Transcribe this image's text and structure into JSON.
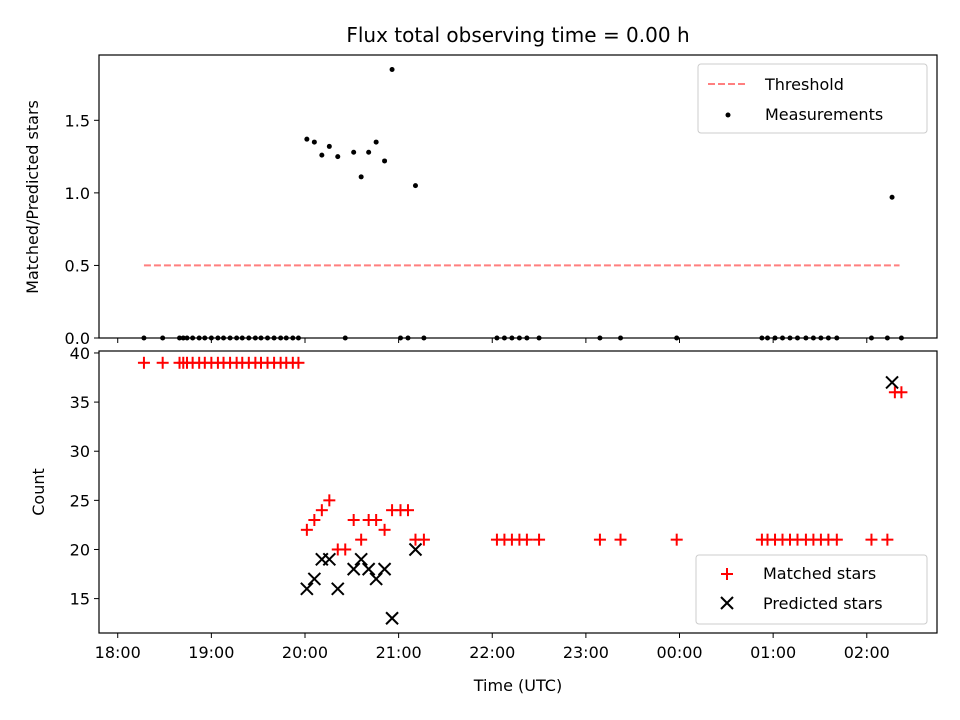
{
  "chart_data": [
    {
      "type": "scatter",
      "title": "Flux total observing time = 0.00 h",
      "xlabel": "",
      "ylabel": "Matched/Predicted stars",
      "xlim": [
        -0.2,
        8.75
      ],
      "ylim": [
        0.0,
        1.95
      ],
      "xticks": [
        0,
        1,
        2,
        3,
        4,
        5,
        6,
        7,
        8
      ],
      "yticks": [
        0.0,
        0.5,
        1.0,
        1.5
      ],
      "ytick_labels": [
        "0.0",
        "0.5",
        "1.0",
        "1.5"
      ],
      "grid": false,
      "legend_position": "top-right",
      "threshold": {
        "name": "Threshold",
        "value": 0.5,
        "x_range": [
          0.28,
          8.35
        ],
        "color": "#ff7f7f",
        "style": "dashed"
      },
      "series": [
        {
          "name": "Measurements",
          "color": "#000000",
          "points": [
            [
              0.28,
              0.0
            ],
            [
              0.48,
              0.0
            ],
            [
              0.66,
              0.0
            ],
            [
              0.7,
              0.0
            ],
            [
              0.74,
              0.0
            ],
            [
              0.8,
              0.0
            ],
            [
              0.87,
              0.0
            ],
            [
              0.93,
              0.0
            ],
            [
              1.0,
              0.0
            ],
            [
              1.07,
              0.0
            ],
            [
              1.13,
              0.0
            ],
            [
              1.2,
              0.0
            ],
            [
              1.27,
              0.0
            ],
            [
              1.33,
              0.0
            ],
            [
              1.4,
              0.0
            ],
            [
              1.47,
              0.0
            ],
            [
              1.53,
              0.0
            ],
            [
              1.6,
              0.0
            ],
            [
              1.67,
              0.0
            ],
            [
              1.74,
              0.0
            ],
            [
              1.8,
              0.0
            ],
            [
              1.87,
              0.0
            ],
            [
              1.93,
              0.0
            ],
            [
              2.02,
              1.37
            ],
            [
              2.1,
              1.35
            ],
            [
              2.18,
              1.26
            ],
            [
              2.26,
              1.32
            ],
            [
              2.35,
              1.25
            ],
            [
              2.43,
              0.0
            ],
            [
              2.52,
              1.28
            ],
            [
              2.6,
              1.11
            ],
            [
              2.68,
              1.28
            ],
            [
              2.76,
              1.35
            ],
            [
              2.85,
              1.22
            ],
            [
              2.93,
              1.85
            ],
            [
              3.02,
              0.0
            ],
            [
              3.1,
              0.0
            ],
            [
              3.18,
              1.05
            ],
            [
              3.27,
              0.0
            ],
            [
              4.05,
              0.0
            ],
            [
              4.13,
              0.0
            ],
            [
              4.21,
              0.0
            ],
            [
              4.29,
              0.0
            ],
            [
              4.37,
              0.0
            ],
            [
              4.5,
              0.0
            ],
            [
              5.15,
              0.0
            ],
            [
              5.37,
              0.0
            ],
            [
              5.97,
              0.0
            ],
            [
              6.88,
              0.0
            ],
            [
              6.94,
              0.0
            ],
            [
              7.02,
              0.0
            ],
            [
              7.1,
              0.0
            ],
            [
              7.18,
              0.0
            ],
            [
              7.26,
              0.0
            ],
            [
              7.35,
              0.0
            ],
            [
              7.43,
              0.0
            ],
            [
              7.51,
              0.0
            ],
            [
              7.59,
              0.0
            ],
            [
              7.68,
              0.0
            ],
            [
              8.05,
              0.0
            ],
            [
              8.22,
              0.0
            ],
            [
              8.27,
              0.97
            ],
            [
              8.37,
              0.0
            ]
          ]
        }
      ]
    },
    {
      "type": "scatter",
      "title": "",
      "xlabel": "Time (UTC)",
      "ylabel": "Count",
      "xlim": [
        -0.2,
        8.75
      ],
      "ylim": [
        11.5,
        40.2
      ],
      "xticks": [
        0,
        1,
        2,
        3,
        4,
        5,
        6,
        7,
        8
      ],
      "xtick_labels": [
        "18:00",
        "19:00",
        "20:00",
        "21:00",
        "22:00",
        "23:00",
        "00:00",
        "01:00",
        "02:00"
      ],
      "yticks": [
        15,
        20,
        25,
        30,
        35,
        40
      ],
      "ytick_labels": [
        "15",
        "20",
        "25",
        "30",
        "35",
        "40"
      ],
      "grid": false,
      "legend_position": "bottom-right",
      "series": [
        {
          "name": "Matched stars",
          "marker": "plus",
          "color": "#ff0000",
          "points": [
            [
              0.28,
              39
            ],
            [
              0.48,
              39
            ],
            [
              0.66,
              39
            ],
            [
              0.7,
              39
            ],
            [
              0.74,
              39
            ],
            [
              0.8,
              39
            ],
            [
              0.87,
              39
            ],
            [
              0.93,
              39
            ],
            [
              1.0,
              39
            ],
            [
              1.07,
              39
            ],
            [
              1.13,
              39
            ],
            [
              1.2,
              39
            ],
            [
              1.27,
              39
            ],
            [
              1.33,
              39
            ],
            [
              1.4,
              39
            ],
            [
              1.47,
              39
            ],
            [
              1.53,
              39
            ],
            [
              1.6,
              39
            ],
            [
              1.67,
              39
            ],
            [
              1.74,
              39
            ],
            [
              1.8,
              39
            ],
            [
              1.87,
              39
            ],
            [
              1.93,
              39
            ],
            [
              2.02,
              22
            ],
            [
              2.1,
              23
            ],
            [
              2.18,
              24
            ],
            [
              2.26,
              25
            ],
            [
              2.35,
              20
            ],
            [
              2.43,
              20
            ],
            [
              2.52,
              23
            ],
            [
              2.6,
              21
            ],
            [
              2.68,
              23
            ],
            [
              2.76,
              23
            ],
            [
              2.85,
              22
            ],
            [
              2.93,
              24
            ],
            [
              3.02,
              24
            ],
            [
              3.1,
              24
            ],
            [
              3.18,
              21
            ],
            [
              3.27,
              21
            ],
            [
              4.05,
              21
            ],
            [
              4.13,
              21
            ],
            [
              4.21,
              21
            ],
            [
              4.29,
              21
            ],
            [
              4.37,
              21
            ],
            [
              4.5,
              21
            ],
            [
              5.15,
              21
            ],
            [
              5.37,
              21
            ],
            [
              5.97,
              21
            ],
            [
              6.88,
              21
            ],
            [
              6.94,
              21
            ],
            [
              7.02,
              21
            ],
            [
              7.1,
              21
            ],
            [
              7.18,
              21
            ],
            [
              7.26,
              21
            ],
            [
              7.35,
              21
            ],
            [
              7.43,
              21
            ],
            [
              7.51,
              21
            ],
            [
              7.59,
              21
            ],
            [
              7.68,
              21
            ],
            [
              8.05,
              21
            ],
            [
              8.22,
              21
            ],
            [
              8.3,
              36
            ],
            [
              8.37,
              36
            ]
          ]
        },
        {
          "name": "Predicted stars",
          "marker": "x",
          "color": "#000000",
          "points": [
            [
              2.02,
              16
            ],
            [
              2.1,
              17
            ],
            [
              2.18,
              19
            ],
            [
              2.26,
              19
            ],
            [
              2.35,
              16
            ],
            [
              2.52,
              18
            ],
            [
              2.6,
              19
            ],
            [
              2.68,
              18
            ],
            [
              2.76,
              17
            ],
            [
              2.85,
              18
            ],
            [
              2.93,
              13
            ],
            [
              3.18,
              20
            ],
            [
              8.27,
              37
            ]
          ]
        }
      ]
    }
  ]
}
